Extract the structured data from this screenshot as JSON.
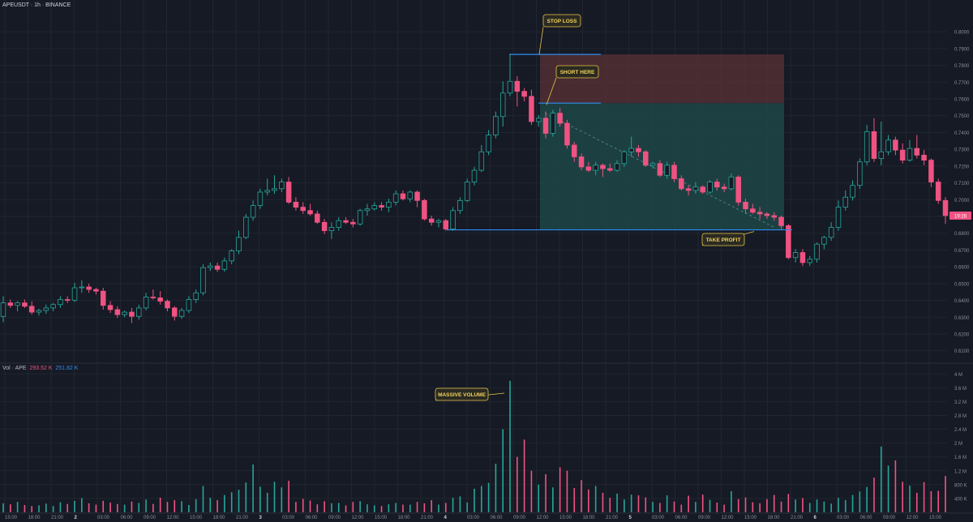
{
  "header": {
    "title": "APEUSDT · 1h · BINANCE"
  },
  "volume_header": {
    "label": "Vol · APE",
    "value_red": "293.52 K",
    "value_blue": "251.82 K"
  },
  "colors": {
    "background": "#161a25",
    "up": "#26a69a",
    "down": "#ef5382",
    "grid": "#21252f",
    "level_line": "#2e8cf0",
    "stop_zone": "#5a3236",
    "target_zone": "#1e4a4a",
    "callout_border": "#e8c547",
    "callout_text": "#f2d35a",
    "price_tag": "#ef5382"
  },
  "annotations": {
    "stop_loss": "STOP LOSS",
    "short_here": "SHORT HERE",
    "take_profit": "TAKE PROFIT",
    "massive_volume": "MASSIVE VOLUME"
  },
  "current_price_tag": "19:28",
  "chart_data": {
    "type": "candlestick",
    "symbol": "APEUSDT",
    "interval": "1h",
    "exchange": "BINANCE",
    "price_axis": {
      "ticks": [
        "0.8000",
        "0.7900",
        "0.7800",
        "0.7700",
        "0.7600",
        "0.7500",
        "0.7400",
        "0.7300",
        "0.7200",
        "0.7100",
        "0.7000",
        "0.6900",
        "0.6800",
        "0.6700",
        "0.6600",
        "0.6500",
        "0.6400",
        "0.6300",
        "0.6200",
        "0.6100"
      ],
      "range": [
        0.606,
        0.8025
      ]
    },
    "volume_axis": {
      "ticks": [
        "4 M",
        "3.6 M",
        "3.2 M",
        "2.8 M",
        "2.4 M",
        "2 M",
        "1.6 M",
        "1.2 M",
        "800 K",
        "400 K"
      ],
      "range": [
        0,
        4100000
      ]
    },
    "time_axis": {
      "labels": [
        "15:00",
        "18:00",
        "21:00",
        "2",
        "03:00",
        "06:00",
        "09:00",
        "12:00",
        "15:00",
        "18:00",
        "21:00",
        "3",
        "03:00",
        "06:00",
        "09:00",
        "12:00",
        "15:00",
        "18:00",
        "21:00",
        "4",
        "03:00",
        "06:00",
        "09:00",
        "12:00",
        "15:00",
        "18:00",
        "21:00",
        "5",
        "03:00",
        "06:00",
        "09:00",
        "12:00",
        "15:00",
        "18:00",
        "21:00",
        "6",
        "03:00",
        "06:00",
        "09:00",
        "12:00",
        "15:00"
      ],
      "bold": [
        "2",
        "3",
        "4",
        "5",
        "6"
      ]
    },
    "levels": {
      "stop_loss": 0.7865,
      "entry": 0.7575,
      "take_profit": 0.682
    },
    "candles": [
      [
        0.6305,
        0.6425,
        0.627,
        0.6385
      ],
      [
        0.6385,
        0.6405,
        0.6355,
        0.637
      ],
      [
        0.637,
        0.6395,
        0.6335,
        0.6385
      ],
      [
        0.6385,
        0.6405,
        0.6355,
        0.6365
      ],
      [
        0.6365,
        0.6395,
        0.6315,
        0.633
      ],
      [
        0.633,
        0.635,
        0.631,
        0.634
      ],
      [
        0.634,
        0.6375,
        0.632,
        0.6355
      ],
      [
        0.6355,
        0.6385,
        0.6335,
        0.6375
      ],
      [
        0.6375,
        0.6425,
        0.6355,
        0.6405
      ],
      [
        0.6405,
        0.6425,
        0.6385,
        0.64
      ],
      [
        0.64,
        0.6505,
        0.639,
        0.6475
      ],
      [
        0.6475,
        0.652,
        0.6445,
        0.648
      ],
      [
        0.648,
        0.65,
        0.6445,
        0.6465
      ],
      [
        0.6465,
        0.6475,
        0.6435,
        0.6455
      ],
      [
        0.6455,
        0.6475,
        0.6345,
        0.637
      ],
      [
        0.637,
        0.6395,
        0.6325,
        0.6345
      ],
      [
        0.6345,
        0.6365,
        0.6295,
        0.6315
      ],
      [
        0.6315,
        0.634,
        0.63,
        0.633
      ],
      [
        0.633,
        0.6355,
        0.6265,
        0.6305
      ],
      [
        0.6305,
        0.6375,
        0.6285,
        0.6355
      ],
      [
        0.6355,
        0.6445,
        0.634,
        0.642
      ],
      [
        0.642,
        0.6465,
        0.6405,
        0.6415
      ],
      [
        0.6415,
        0.6455,
        0.6375,
        0.6395
      ],
      [
        0.6395,
        0.6405,
        0.6335,
        0.6355
      ],
      [
        0.6355,
        0.6365,
        0.628,
        0.6305
      ],
      [
        0.6305,
        0.6355,
        0.629,
        0.634
      ],
      [
        0.634,
        0.6425,
        0.6325,
        0.6405
      ],
      [
        0.6405,
        0.6465,
        0.6385,
        0.6445
      ],
      [
        0.6445,
        0.6615,
        0.643,
        0.6595
      ],
      [
        0.6595,
        0.6625,
        0.6575,
        0.6605
      ],
      [
        0.6605,
        0.6625,
        0.657,
        0.6585
      ],
      [
        0.6585,
        0.6655,
        0.657,
        0.6635
      ],
      [
        0.6635,
        0.6705,
        0.6615,
        0.6695
      ],
      [
        0.6695,
        0.6815,
        0.6675,
        0.6775
      ],
      [
        0.6775,
        0.6915,
        0.6765,
        0.6895
      ],
      [
        0.6895,
        0.6995,
        0.6875,
        0.6965
      ],
      [
        0.6965,
        0.7065,
        0.6945,
        0.7045
      ],
      [
        0.7045,
        0.7125,
        0.7025,
        0.7055
      ],
      [
        0.7055,
        0.7145,
        0.7035,
        0.7065
      ],
      [
        0.7065,
        0.7125,
        0.7045,
        0.7105
      ],
      [
        0.7105,
        0.7135,
        0.6975,
        0.6985
      ],
      [
        0.6985,
        0.7015,
        0.6935,
        0.6955
      ],
      [
        0.6955,
        0.6985,
        0.6915,
        0.6935
      ],
      [
        0.6935,
        0.6975,
        0.6905,
        0.6915
      ],
      [
        0.6915,
        0.6935,
        0.6855,
        0.6865
      ],
      [
        0.6865,
        0.6885,
        0.6795,
        0.6815
      ],
      [
        0.6815,
        0.6865,
        0.6765,
        0.6835
      ],
      [
        0.6835,
        0.6895,
        0.6815,
        0.6875
      ],
      [
        0.6875,
        0.6895,
        0.6855,
        0.6865
      ],
      [
        0.6865,
        0.6885,
        0.6835,
        0.6855
      ],
      [
        0.6855,
        0.6945,
        0.6845,
        0.6935
      ],
      [
        0.6935,
        0.6975,
        0.6905,
        0.6945
      ],
      [
        0.6945,
        0.6985,
        0.6935,
        0.6965
      ],
      [
        0.6965,
        0.6985,
        0.6935,
        0.6955
      ],
      [
        0.6955,
        0.7005,
        0.6925,
        0.6985
      ],
      [
        0.6985,
        0.7055,
        0.6965,
        0.7035
      ],
      [
        0.7035,
        0.7055,
        0.6995,
        0.7005
      ],
      [
        0.7005,
        0.7055,
        0.6985,
        0.7045
      ],
      [
        0.7045,
        0.7055,
        0.6955,
        0.6995
      ],
      [
        0.6995,
        0.7005,
        0.6875,
        0.6885
      ],
      [
        0.6885,
        0.6905,
        0.6845,
        0.6865
      ],
      [
        0.6865,
        0.6885,
        0.6835,
        0.6875
      ],
      [
        0.6875,
        0.6885,
        0.6815,
        0.6825
      ],
      [
        0.6825,
        0.6955,
        0.6815,
        0.6935
      ],
      [
        0.6935,
        0.7015,
        0.6915,
        0.6995
      ],
      [
        0.6995,
        0.7125,
        0.6985,
        0.7105
      ],
      [
        0.7105,
        0.7195,
        0.7085,
        0.7175
      ],
      [
        0.7175,
        0.7325,
        0.7165,
        0.7285
      ],
      [
        0.7285,
        0.7415,
        0.7265,
        0.7385
      ],
      [
        0.7385,
        0.7525,
        0.7365,
        0.7495
      ],
      [
        0.7495,
        0.7705,
        0.7435,
        0.7635
      ],
      [
        0.7635,
        0.7865,
        0.7615,
        0.7705
      ],
      [
        0.7705,
        0.7735,
        0.7555,
        0.7645
      ],
      [
        0.7645,
        0.7665,
        0.7585,
        0.7615
      ],
      [
        0.7615,
        0.7655,
        0.7445,
        0.7465
      ],
      [
        0.7465,
        0.7505,
        0.7435,
        0.7485
      ],
      [
        0.7485,
        0.7525,
        0.7365,
        0.7395
      ],
      [
        0.7395,
        0.7535,
        0.7375,
        0.7515
      ],
      [
        0.7515,
        0.7545,
        0.7435,
        0.7455
      ],
      [
        0.7455,
        0.7475,
        0.7305,
        0.7325
      ],
      [
        0.7325,
        0.7345,
        0.7225,
        0.7255
      ],
      [
        0.7255,
        0.7275,
        0.7175,
        0.7195
      ],
      [
        0.7195,
        0.7225,
        0.7165,
        0.7175
      ],
      [
        0.7175,
        0.7225,
        0.7145,
        0.7205
      ],
      [
        0.7205,
        0.7215,
        0.7135,
        0.7185
      ],
      [
        0.7185,
        0.7215,
        0.7165,
        0.7175
      ],
      [
        0.7175,
        0.7235,
        0.7165,
        0.7215
      ],
      [
        0.7215,
        0.7295,
        0.7195,
        0.7285
      ],
      [
        0.7285,
        0.7375,
        0.7255,
        0.7305
      ],
      [
        0.7305,
        0.7325,
        0.7255,
        0.7285
      ],
      [
        0.7285,
        0.7295,
        0.7195,
        0.7205
      ],
      [
        0.7205,
        0.7225,
        0.7185,
        0.7215
      ],
      [
        0.7215,
        0.7235,
        0.7135,
        0.7145
      ],
      [
        0.7145,
        0.7225,
        0.7125,
        0.7205
      ],
      [
        0.7205,
        0.7225,
        0.7105,
        0.7125
      ],
      [
        0.7125,
        0.7145,
        0.7055,
        0.7065
      ],
      [
        0.7065,
        0.7085,
        0.7025,
        0.7055
      ],
      [
        0.7055,
        0.7105,
        0.7035,
        0.7075
      ],
      [
        0.7075,
        0.7085,
        0.7035,
        0.7045
      ],
      [
        0.7045,
        0.7115,
        0.7035,
        0.7105
      ],
      [
        0.7105,
        0.7125,
        0.7055,
        0.7075
      ],
      [
        0.7075,
        0.7095,
        0.7045,
        0.7065
      ],
      [
        0.7065,
        0.7155,
        0.7055,
        0.7135
      ],
      [
        0.7135,
        0.7145,
        0.6965,
        0.6985
      ],
      [
        0.6985,
        0.7005,
        0.6915,
        0.6945
      ],
      [
        0.6945,
        0.6975,
        0.6915,
        0.6925
      ],
      [
        0.6925,
        0.6955,
        0.6885,
        0.6915
      ],
      [
        0.6915,
        0.6925,
        0.6885,
        0.6905
      ],
      [
        0.6905,
        0.6925,
        0.6875,
        0.6895
      ],
      [
        0.6895,
        0.6905,
        0.6825,
        0.6845
      ],
      [
        0.6845,
        0.6855,
        0.6645,
        0.6655
      ],
      [
        0.6655,
        0.6705,
        0.6625,
        0.6685
      ],
      [
        0.6685,
        0.6705,
        0.6605,
        0.6625
      ],
      [
        0.6625,
        0.6665,
        0.6605,
        0.6645
      ],
      [
        0.6645,
        0.6745,
        0.6625,
        0.6735
      ],
      [
        0.6735,
        0.6785,
        0.6705,
        0.6775
      ],
      [
        0.6775,
        0.6865,
        0.6755,
        0.6835
      ],
      [
        0.6835,
        0.6995,
        0.6815,
        0.6955
      ],
      [
        0.6955,
        0.7055,
        0.6935,
        0.7015
      ],
      [
        0.7015,
        0.7115,
        0.6995,
        0.7085
      ],
      [
        0.7085,
        0.7245,
        0.7065,
        0.7225
      ],
      [
        0.7225,
        0.7445,
        0.7205,
        0.7405
      ],
      [
        0.7405,
        0.7485,
        0.7225,
        0.7245
      ],
      [
        0.7245,
        0.7465,
        0.7205,
        0.7285
      ],
      [
        0.7285,
        0.7385,
        0.7265,
        0.7355
      ],
      [
        0.7355,
        0.7375,
        0.7265,
        0.7295
      ],
      [
        0.7295,
        0.7335,
        0.7215,
        0.7235
      ],
      [
        0.7235,
        0.7355,
        0.7225,
        0.7305
      ],
      [
        0.7305,
        0.7385,
        0.7245,
        0.7265
      ],
      [
        0.7265,
        0.7295,
        0.7205,
        0.7235
      ],
      [
        0.7235,
        0.7245,
        0.7075,
        0.7105
      ],
      [
        0.7105,
        0.7125,
        0.6975,
        0.6995
      ],
      [
        0.6995,
        0.7015,
        0.6855,
        0.6905
      ]
    ],
    "volume": [
      260000,
      230000,
      300000,
      210000,
      180000,
      200000,
      250000,
      180000,
      290000,
      240000,
      330000,
      410000,
      260000,
      220000,
      330000,
      280000,
      240000,
      220000,
      310000,
      270000,
      370000,
      240000,
      420000,
      300000,
      350000,
      320000,
      210000,
      380000,
      760000,
      420000,
      350000,
      500000,
      580000,
      650000,
      860000,
      1380000,
      740000,
      560000,
      880000,
      720000,
      910000,
      300000,
      390000,
      340000,
      230000,
      320000,
      260000,
      270000,
      200000,
      300000,
      320000,
      230000,
      200000,
      180000,
      230000,
      270000,
      220000,
      220000,
      300000,
      260000,
      350000,
      220000,
      270000,
      420000,
      460000,
      280000,
      680000,
      760000,
      850000,
      1400000,
      2400000,
      3800000,
      1600000,
      2100000,
      1200000,
      800000,
      1100000,
      720000,
      1300000,
      1200000,
      700000,
      930000,
      660000,
      760000,
      560000,
      420000,
      540000,
      370000,
      510000,
      490000,
      430000,
      300000,
      270000,
      490000,
      310000,
      220000,
      480000,
      300000,
      510000,
      360000,
      280000,
      220000,
      610000,
      380000,
      430000,
      290000,
      260000,
      380000,
      500000,
      310000,
      530000,
      370000,
      410000,
      270000,
      370000,
      310000,
      250000,
      420000,
      350000,
      500000,
      600000,
      730000,
      1000000,
      1900000,
      1350000,
      1500000,
      880000,
      770000,
      560000,
      870000,
      610000,
      620000,
      1050000,
      960000,
      1650000,
      1450000,
      900000
    ]
  }
}
